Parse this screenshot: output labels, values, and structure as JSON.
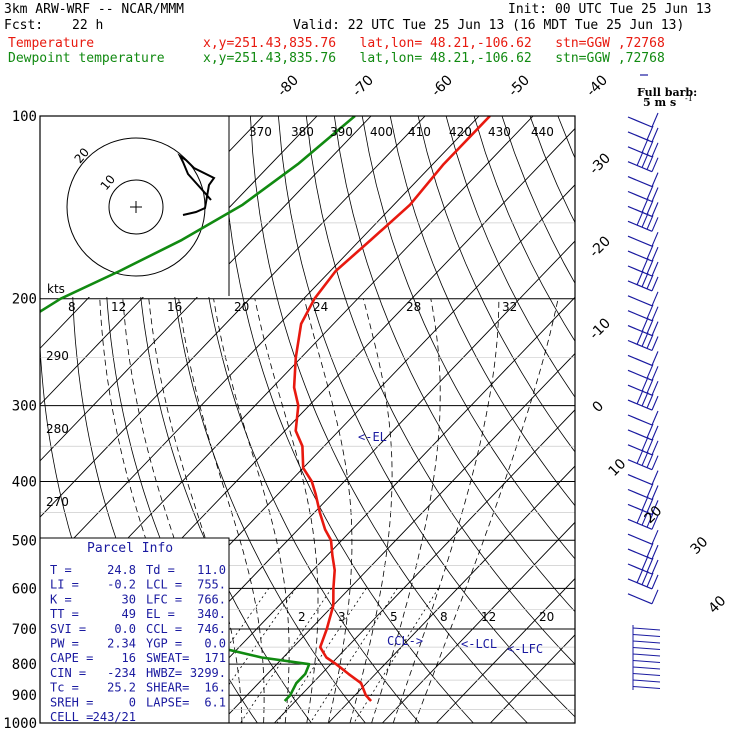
{
  "header": {
    "model": "3km ARW-WRF -- NCAR/MMM",
    "init": "Init: 00 UTC Tue 25 Jun 13",
    "fcst_label": "Fcst:",
    "fcst_value": "22 h",
    "valid": "Valid: 22 UTC Tue 25 Jun 13 (16 MDT Tue 25 Jun 13)",
    "temp_label": "Temperature",
    "dew_label": "Dewpoint temperature",
    "temp_info": "x,y=251.43,835.76   lat,lon= 48.21,-106.62   stn=GGW ,72768",
    "dew_info": "x,y=251.43,835.76   lat,lon= 48.21,-106.62   stn=GGW ,72768"
  },
  "colors": {
    "temperature": "#e8190f",
    "dewpoint": "#118a11",
    "annotation": "#1a1aa0",
    "grid": "#000000"
  },
  "wind_barb_caption": {
    "line1": "Full barb:",
    "line2": "5 m s",
    "sup": "-1"
  },
  "hodograph": {
    "units": "kts",
    "rings": [
      "10",
      "20"
    ]
  },
  "parcel_info": {
    "title": "Parcel Info",
    "rows": [
      [
        "T   =",
        "24.8",
        "Td  =",
        "11.0"
      ],
      [
        "LI  =",
        "-0.2",
        "LCL =",
        "755."
      ],
      [
        "K   =",
        "30",
        "LFC =",
        "766."
      ],
      [
        "TT  =",
        "49",
        "EL  =",
        "340."
      ],
      [
        "SVI =",
        "0.0",
        "CCL =",
        "746."
      ],
      [
        "PW  =",
        "2.34",
        "YGP =",
        "0.0"
      ],
      [
        "CAPE =",
        "16",
        "SWEAT=",
        "171"
      ],
      [
        "CIN =",
        "-234",
        "HWBZ=",
        "3299."
      ],
      [
        "Tc  =",
        "25.2",
        "SHEAR=",
        "16."
      ],
      [
        "SREH =",
        "0",
        "LAPSE=",
        "6.1"
      ],
      [
        "CELL =",
        "243/21",
        "",
        ""
      ]
    ]
  },
  "level_markers": {
    "el": "<-EL",
    "ccl": "CCL->",
    "lcl": "<-LCL",
    "lfc": "<-LFC"
  },
  "chart_data": {
    "type": "skew-t",
    "y_axis": {
      "label": "",
      "scale": "log pressure",
      "ticks": [
        100,
        200,
        300,
        400,
        500,
        600,
        700,
        800,
        900,
        1000
      ]
    },
    "isotherm_labels": [
      "-80",
      "-70",
      "-60",
      "-50",
      "-40",
      "-30",
      "-20",
      "-10",
      "0",
      "10",
      "20",
      "30",
      "40"
    ],
    "theta_e_labels": [
      "370",
      "380",
      "390",
      "400",
      "410",
      "420",
      "430",
      "440"
    ],
    "theta_labels": [
      "290",
      "280",
      "270"
    ],
    "mixing_ratio_upper_labels": [
      "8",
      "12",
      "16",
      "20",
      "24",
      "28",
      "32"
    ],
    "mixing_ratio_lower_labels": [
      "2",
      "3",
      "5",
      "8",
      "12",
      "20"
    ],
    "series": [
      {
        "name": "Temperature",
        "pressure": [
          100,
          120,
          140,
          160,
          180,
          200,
          220,
          250,
          280,
          300,
          330,
          350,
          380,
          400,
          420,
          450,
          480,
          500,
          530,
          560,
          600,
          640,
          700,
          750,
          780,
          800,
          830,
          860,
          900,
          920
        ],
        "temperature": [
          -58,
          -58,
          -57,
          -58,
          -59,
          -58,
          -56,
          -51,
          -46,
          -42,
          -38,
          -34,
          -30,
          -26,
          -23,
          -19,
          -15,
          -12,
          -9,
          -6,
          -3,
          0,
          3,
          5,
          8,
          11,
          15,
          19,
          22,
          24
        ]
      },
      {
        "name": "Dewpoint temperature",
        "pressure": [
          100,
          120,
          140,
          160,
          180,
          200,
          220,
          250,
          280,
          300,
          330,
          350,
          380,
          400,
          430,
          450,
          480,
          500,
          530,
          560,
          600,
          640,
          680,
          700,
          720,
          750,
          780,
          800,
          830,
          860,
          900,
          920
        ],
        "temperature": [
          -83,
          -85,
          -88,
          -93,
          -99,
          -105,
          -108,
          -113,
          -114,
          -113,
          -112,
          -109,
          -106,
          -103,
          -100,
          -97,
          -95,
          -90,
          -77,
          -64,
          -51,
          -38,
          -24,
          -21,
          -20,
          -14,
          -4,
          6,
          7,
          7,
          8,
          8
        ]
      }
    ]
  }
}
